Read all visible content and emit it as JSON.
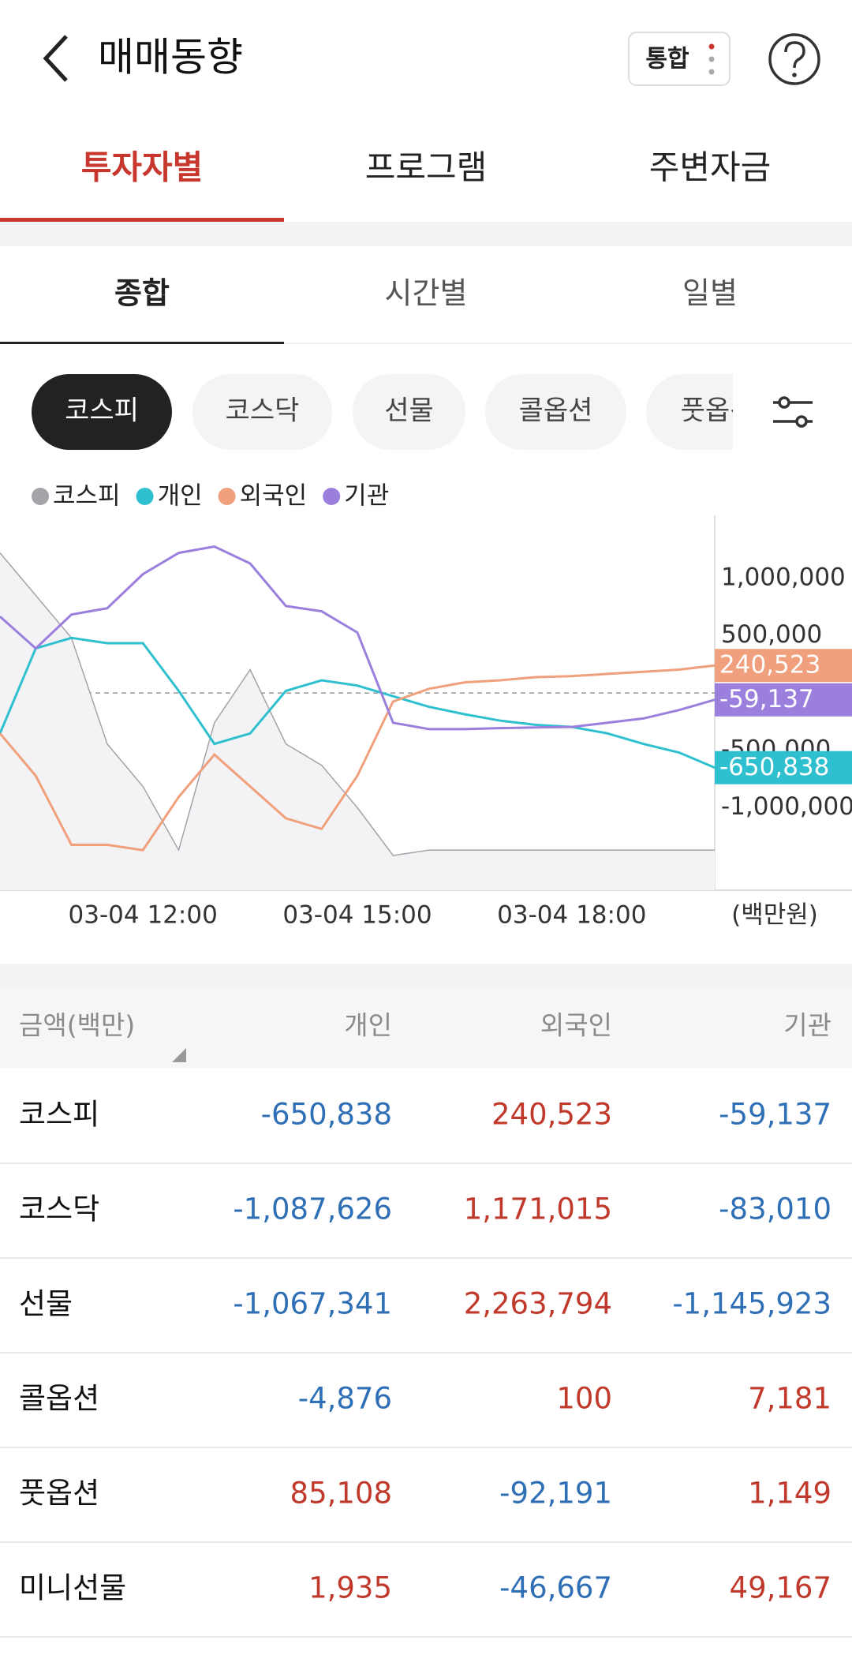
{
  "header": {
    "title": "매매동향",
    "toggle": "통합"
  },
  "tabs": [
    "투자자별",
    "프로그램",
    "주변자금"
  ],
  "subtabs": [
    "종합",
    "시간별",
    "일별"
  ],
  "chips": [
    "코스피",
    "코스닥",
    "선물",
    "콜옵션",
    "풋옵션"
  ],
  "chart_data": {
    "type": "line",
    "x": [
      10,
      10.5,
      11,
      11.5,
      12,
      12.5,
      13,
      13.5,
      14,
      14.5,
      15,
      15.5,
      16,
      16.5,
      17,
      17.5,
      18,
      18.5,
      19,
      19.5,
      20
    ],
    "xlim": [
      10,
      20
    ],
    "xticks": [
      {
        "value": 12,
        "label": "03-04 12:00"
      },
      {
        "value": 15,
        "label": "03-04 15:00"
      },
      {
        "value": 18,
        "label": "03-04 18:00"
      }
    ],
    "ylim": [
      -1720000,
      1550000
    ],
    "yticks": [
      {
        "value": 1000000,
        "label": "1,000,000"
      },
      {
        "value": 500000,
        "label": "500,000"
      },
      {
        "value": -500000,
        "label": "-500,000"
      },
      {
        "value": -1000000,
        "label": "-1,000,000"
      }
    ],
    "unit_label": "(백만원)",
    "series": [
      {
        "name": "코스피",
        "color": "#a3a3a8",
        "area": true,
        "values": [
          1222000,
          852000,
          481000,
          -444000,
          -815000,
          -1370000,
          -259000,
          204000,
          -444000,
          -630000,
          -1000000,
          -1417000,
          -1370000,
          -1370000,
          -1370000,
          -1370000,
          -1370000,
          -1370000,
          -1370000,
          -1370000,
          -1370000
        ]
      },
      {
        "name": "개인",
        "color": "#2fc0cf",
        "values": [
          -352000,
          389000,
          481000,
          435000,
          435000,
          19000,
          -444000,
          -352000,
          19000,
          111000,
          65000,
          -28000,
          -120000,
          -185000,
          -241000,
          -278000,
          -296000,
          -352000,
          -444000,
          -519000,
          -650838
        ],
        "value_labels": [
          null,
          null,
          null,
          null,
          null,
          null,
          null,
          null,
          null,
          null,
          null,
          null,
          null,
          null,
          null,
          null,
          null,
          null,
          null,
          null,
          "-650,838"
        ]
      },
      {
        "name": "외국인",
        "color": "#f0a07c",
        "values": [
          -352000,
          -722000,
          -1324000,
          -1324000,
          -1370000,
          -907000,
          -537000,
          -815000,
          -1093000,
          -1185000,
          -722000,
          -74000,
          37000,
          93000,
          111000,
          139000,
          148000,
          167000,
          185000,
          204000,
          240523
        ],
        "value_labels": [
          null,
          null,
          null,
          null,
          null,
          null,
          null,
          null,
          null,
          null,
          null,
          null,
          null,
          null,
          null,
          null,
          null,
          null,
          null,
          null,
          "240,523"
        ]
      },
      {
        "name": "기관",
        "color": "#9a7fdc",
        "values": [
          667000,
          389000,
          685000,
          740000,
          1037000,
          1222000,
          1278000,
          1130000,
          759000,
          713000,
          528000,
          -259000,
          -315000,
          -315000,
          -306000,
          -300000,
          -296000,
          -259000,
          -222000,
          -148000,
          -59137
        ],
        "value_labels": [
          null,
          null,
          null,
          null,
          null,
          null,
          null,
          null,
          null,
          null,
          null,
          null,
          null,
          null,
          null,
          null,
          null,
          null,
          null,
          null,
          "-59,137"
        ]
      }
    ]
  },
  "table": {
    "header": [
      "금액(백만)",
      "개인",
      "외국인",
      "기관"
    ],
    "rows": [
      [
        "코스피",
        "-650,838",
        "240,523",
        "-59,137"
      ],
      [
        "코스닥",
        "-1,087,626",
        "1,171,015",
        "-83,010"
      ],
      [
        "선물",
        "-1,067,341",
        "2,263,794",
        "-1,145,923"
      ],
      [
        "콜옵션",
        "-4,876",
        "100",
        "7,181"
      ],
      [
        "풋옵션",
        "85,108",
        "-92,191",
        "1,149"
      ],
      [
        "미니선물",
        "1,935",
        "-46,667",
        "49,167"
      ]
    ]
  }
}
